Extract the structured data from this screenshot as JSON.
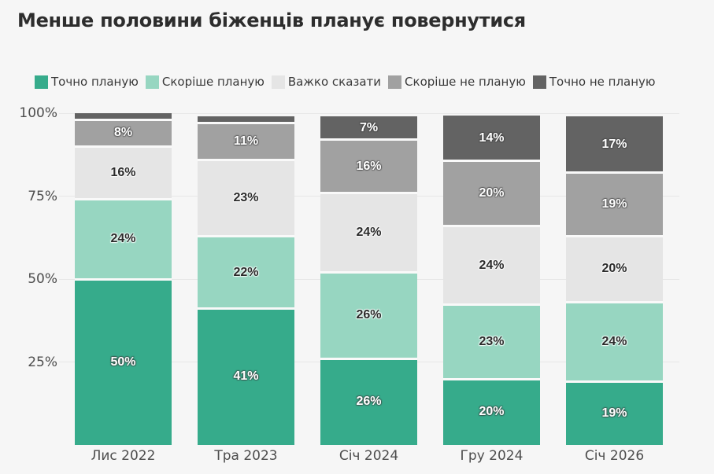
{
  "title": "Менше половини біженців планує повернутися",
  "background_color": "#f6f6f6",
  "chart_data": {
    "type": "bar",
    "variant": "stacked-percentage-column",
    "title": "Менше половини біженців планує повернутися",
    "categories": [
      "Лис 2022",
      "Тра 2023",
      "Січ 2024",
      "Гру 2024",
      "Січ 2026"
    ],
    "series": [
      {
        "name": "Точно планую",
        "color": "#36ab8b",
        "label_color": "#ffffff",
        "values": [
          50,
          41,
          26,
          20,
          19
        ]
      },
      {
        "name": "Скоріше планую",
        "color": "#97d6c1",
        "label_color": "#2b2b2b",
        "values": [
          24,
          22,
          26,
          23,
          24
        ]
      },
      {
        "name": "Важко сказати",
        "color": "#e5e5e5",
        "label_color": "#2b2b2b",
        "values": [
          16,
          23,
          24,
          24,
          20
        ]
      },
      {
        "name": "Скоріше не планую",
        "color": "#a1a1a1",
        "label_color": "#ffffff",
        "values": [
          8,
          11,
          16,
          20,
          19
        ]
      },
      {
        "name": "Точно не планую",
        "color": "#636363",
        "label_color": "#ffffff",
        "values": [
          2,
          2,
          7,
          14,
          17
        ]
      }
    ],
    "data_label_format": "{value}%",
    "min_value_for_label": 5,
    "bar_top_percent": [
      100,
      99,
      99,
      99.4,
      99
    ],
    "y_ticks": [
      {
        "label": "100%",
        "value": 100
      },
      {
        "label": "75%",
        "value": 75
      },
      {
        "label": "50%",
        "value": 50
      },
      {
        "label": "25%",
        "value": 25
      }
    ],
    "ylim": [
      0,
      100
    ],
    "grid": true,
    "legend_position": "top",
    "xlabel": "",
    "ylabel": ""
  }
}
